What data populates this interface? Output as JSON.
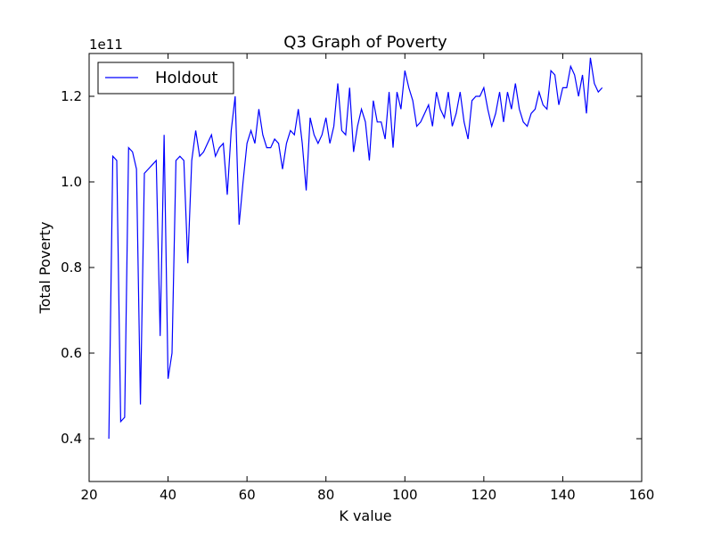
{
  "chart_data": {
    "type": "line",
    "title": "Q3 Graph of Poverty",
    "xlabel": "K value",
    "ylabel": "Total Poverty",
    "offset_text": "1e11",
    "xlim": [
      20,
      160
    ],
    "ylim": [
      0.3,
      1.3
    ],
    "xticks": [
      20,
      40,
      60,
      80,
      100,
      120,
      140,
      160
    ],
    "yticks": [
      0.4,
      0.6,
      0.8,
      1.0,
      1.2
    ],
    "xtick_labels": [
      "20",
      "40",
      "60",
      "80",
      "100",
      "120",
      "140",
      "160"
    ],
    "ytick_labels": [
      "0.4",
      "0.6",
      "0.8",
      "1.0",
      "1.2"
    ],
    "grid": false,
    "legend": {
      "position": "top-left",
      "entries": [
        "Holdout"
      ]
    },
    "series": [
      {
        "name": "Holdout",
        "color": "#0000ff",
        "x": [
          25,
          26,
          27,
          28,
          29,
          30,
          31,
          32,
          33,
          34,
          35,
          36,
          37,
          38,
          39,
          40,
          41,
          42,
          43,
          44,
          45,
          46,
          47,
          48,
          49,
          50,
          51,
          52,
          53,
          54,
          55,
          56,
          57,
          58,
          59,
          60,
          61,
          62,
          63,
          64,
          65,
          66,
          67,
          68,
          69,
          70,
          71,
          72,
          73,
          74,
          75,
          76,
          77,
          78,
          79,
          80,
          81,
          82,
          83,
          84,
          85,
          86,
          87,
          88,
          89,
          90,
          91,
          92,
          93,
          94,
          95,
          96,
          97,
          98,
          99,
          100,
          101,
          102,
          103,
          104,
          105,
          106,
          107,
          108,
          109,
          110,
          111,
          112,
          113,
          114,
          115,
          116,
          117,
          118,
          119,
          120,
          121,
          122,
          123,
          124,
          125,
          126,
          127,
          128,
          129,
          130,
          131,
          132,
          133,
          134,
          135,
          136,
          137,
          138,
          139,
          140,
          141,
          142,
          143,
          144,
          145,
          146,
          147,
          148,
          149,
          150
        ],
        "y": [
          0.4,
          1.06,
          1.05,
          0.44,
          0.45,
          1.08,
          1.07,
          1.03,
          0.48,
          1.02,
          1.03,
          1.04,
          1.05,
          0.64,
          1.11,
          0.54,
          0.6,
          1.05,
          1.06,
          1.05,
          0.81,
          1.05,
          1.12,
          1.06,
          1.07,
          1.09,
          1.11,
          1.06,
          1.08,
          1.09,
          0.97,
          1.12,
          1.2,
          0.9,
          1.0,
          1.09,
          1.12,
          1.09,
          1.17,
          1.11,
          1.08,
          1.08,
          1.1,
          1.09,
          1.03,
          1.09,
          1.12,
          1.11,
          1.17,
          1.09,
          0.98,
          1.15,
          1.11,
          1.09,
          1.11,
          1.15,
          1.09,
          1.13,
          1.23,
          1.12,
          1.11,
          1.22,
          1.07,
          1.13,
          1.17,
          1.14,
          1.05,
          1.19,
          1.14,
          1.14,
          1.1,
          1.21,
          1.08,
          1.21,
          1.17,
          1.26,
          1.22,
          1.19,
          1.13,
          1.14,
          1.16,
          1.18,
          1.13,
          1.21,
          1.17,
          1.15,
          1.21,
          1.13,
          1.16,
          1.21,
          1.14,
          1.1,
          1.19,
          1.2,
          1.2,
          1.22,
          1.17,
          1.13,
          1.16,
          1.21,
          1.14,
          1.21,
          1.17,
          1.23,
          1.17,
          1.14,
          1.13,
          1.16,
          1.17,
          1.21,
          1.18,
          1.17,
          1.26,
          1.25,
          1.18,
          1.22,
          1.22,
          1.27,
          1.25,
          1.2,
          1.25,
          1.16,
          1.29,
          1.23,
          1.21,
          1.22
        ]
      }
    ]
  }
}
